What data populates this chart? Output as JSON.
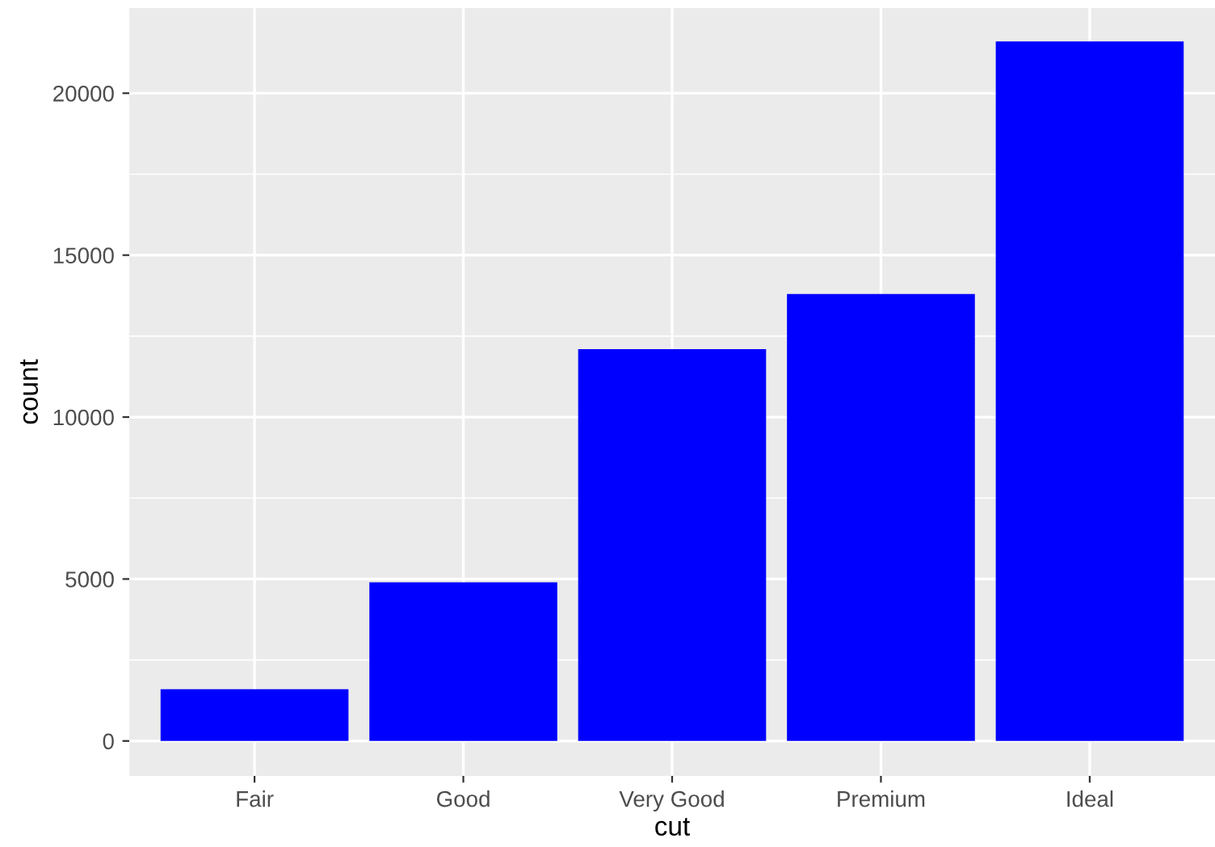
{
  "chart_data": {
    "type": "bar",
    "xlabel": "cut",
    "ylabel": "count",
    "categories": [
      "Fair",
      "Good",
      "Very Good",
      "Premium",
      "Ideal"
    ],
    "values": [
      1600,
      4900,
      12100,
      13800,
      21600
    ],
    "color": "#0000ff",
    "ylim": [
      -1078,
      22628
    ],
    "yticks": [
      0,
      5000,
      10000,
      15000,
      20000
    ],
    "grid": true
  }
}
